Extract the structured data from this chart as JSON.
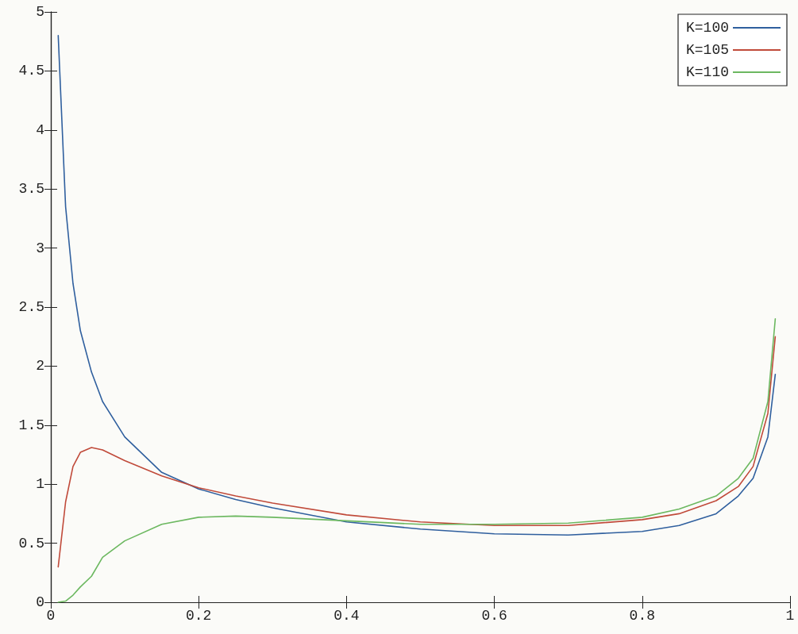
{
  "chart_data": {
    "type": "line",
    "xlim": [
      0,
      1
    ],
    "xticks": [
      0,
      0.2,
      0.4,
      0.6,
      0.8,
      1
    ],
    "ylim": [
      0,
      5
    ],
    "yticks": [
      0,
      0.5,
      1,
      1.5,
      2,
      2.5,
      3,
      3.5,
      4,
      4.5,
      5
    ],
    "grid": false,
    "legend": "top right",
    "marker": "none",
    "line_style": "solid",
    "x": [
      0.01,
      0.02,
      0.03,
      0.04,
      0.055,
      0.07,
      0.1,
      0.15,
      0.2,
      0.25,
      0.3,
      0.4,
      0.5,
      0.6,
      0.7,
      0.8,
      0.85,
      0.9,
      0.93,
      0.95,
      0.97,
      0.98
    ],
    "series": [
      {
        "name": "K=100",
        "color": "#2f5f9e",
        "values": [
          4.8,
          3.35,
          2.7,
          2.3,
          1.95,
          1.7,
          1.4,
          1.1,
          0.96,
          0.87,
          0.8,
          0.68,
          0.62,
          0.58,
          0.57,
          0.6,
          0.65,
          0.75,
          0.9,
          1.05,
          1.4,
          1.93
        ]
      },
      {
        "name": "K=105",
        "color": "#c04a3a",
        "values": [
          0.3,
          0.85,
          1.15,
          1.27,
          1.31,
          1.29,
          1.2,
          1.07,
          0.97,
          0.9,
          0.84,
          0.74,
          0.68,
          0.65,
          0.65,
          0.7,
          0.75,
          0.86,
          0.98,
          1.15,
          1.6,
          2.25
        ]
      },
      {
        "name": "K=110",
        "color": "#6cb860",
        "values": [
          0,
          0.01,
          0.06,
          0.13,
          0.22,
          0.38,
          0.52,
          0.66,
          0.72,
          0.73,
          0.72,
          0.69,
          0.66,
          0.66,
          0.67,
          0.72,
          0.79,
          0.9,
          1.05,
          1.22,
          1.7,
          2.4
        ]
      }
    ]
  }
}
